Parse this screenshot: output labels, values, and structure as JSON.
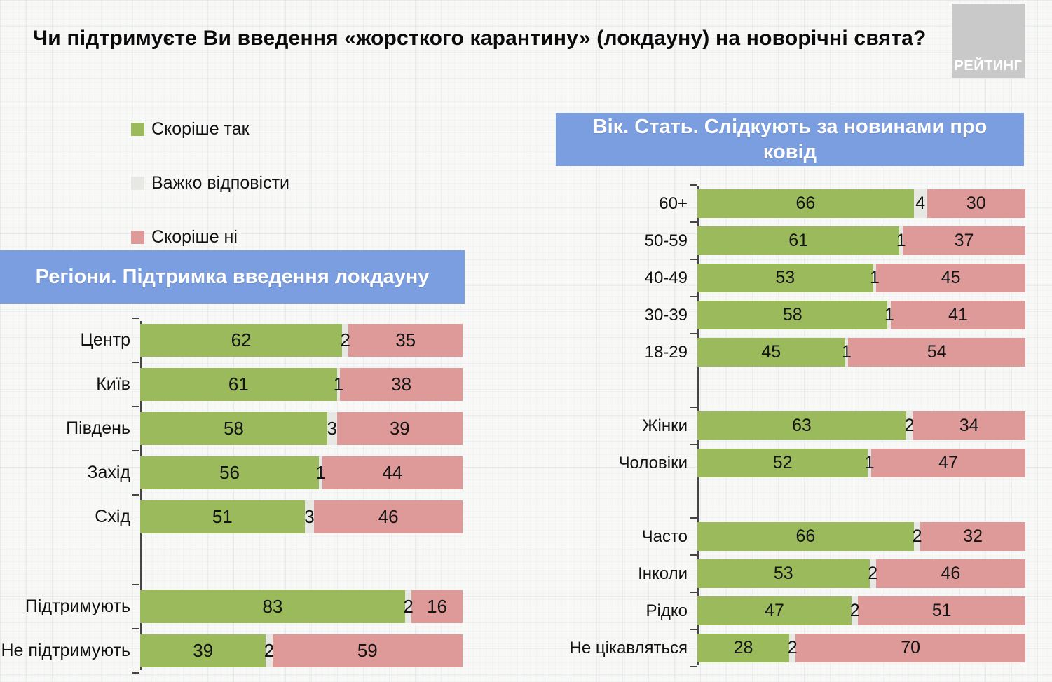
{
  "page": {
    "title": "Чи підтримуєте Ви введення «жорсткого карантину» (локдауну) на новорічні свята?",
    "logo": "РЕЙТИНГ"
  },
  "legend": {
    "items": [
      {
        "key": "yes",
        "label": "Скоріше так",
        "color": "#9aba5c"
      },
      {
        "key": "dk",
        "label": "Важко відповісти",
        "color": "#e7e7e3"
      },
      {
        "key": "no",
        "label": "Скоріше ні",
        "color": "#dd9a98"
      }
    ]
  },
  "colors": {
    "banner_blue": "#7b9ee0",
    "logo_gray": "#c9c9c9",
    "axis": "#454545"
  },
  "chart_data": [
    {
      "type": "bar",
      "orientation": "horizontal",
      "stacked": true,
      "title": "Регіони. Підтримка введення локдауну",
      "x_max": 100,
      "categories": [
        "Центр",
        "Київ",
        "Південь",
        "Захід",
        "Схід",
        "Підтримують",
        "Не підтримують"
      ],
      "gap_before_indices": [
        5
      ],
      "series": [
        {
          "name": "Скоріше так",
          "values": [
            62,
            61,
            58,
            56,
            51,
            83,
            39
          ]
        },
        {
          "name": "Важко відповісти",
          "values": [
            2,
            1,
            3,
            1,
            3,
            2,
            2
          ]
        },
        {
          "name": "Скоріше ні",
          "values": [
            35,
            38,
            39,
            44,
            46,
            16,
            59
          ]
        }
      ]
    },
    {
      "type": "bar",
      "orientation": "horizontal",
      "stacked": true,
      "title": "Вік. Стать. Слідкують за новинами про ковід",
      "x_max": 100,
      "categories": [
        "60+",
        "50-59",
        "40-49",
        "30-39",
        "18-29",
        "Жінки",
        "Чоловіки",
        "Часто",
        "Інколи",
        "Рідко",
        "Не цікавляться"
      ],
      "gap_before_indices": [
        5,
        7
      ],
      "series": [
        {
          "name": "Скоріше так",
          "values": [
            66,
            61,
            53,
            58,
            45,
            63,
            52,
            66,
            53,
            47,
            28
          ]
        },
        {
          "name": "Важко відповісти",
          "values": [
            4,
            1,
            1,
            1,
            1,
            2,
            1,
            2,
            2,
            2,
            2
          ]
        },
        {
          "name": "Скоріше ні",
          "values": [
            30,
            37,
            45,
            41,
            54,
            34,
            47,
            32,
            46,
            51,
            70
          ]
        }
      ]
    }
  ]
}
